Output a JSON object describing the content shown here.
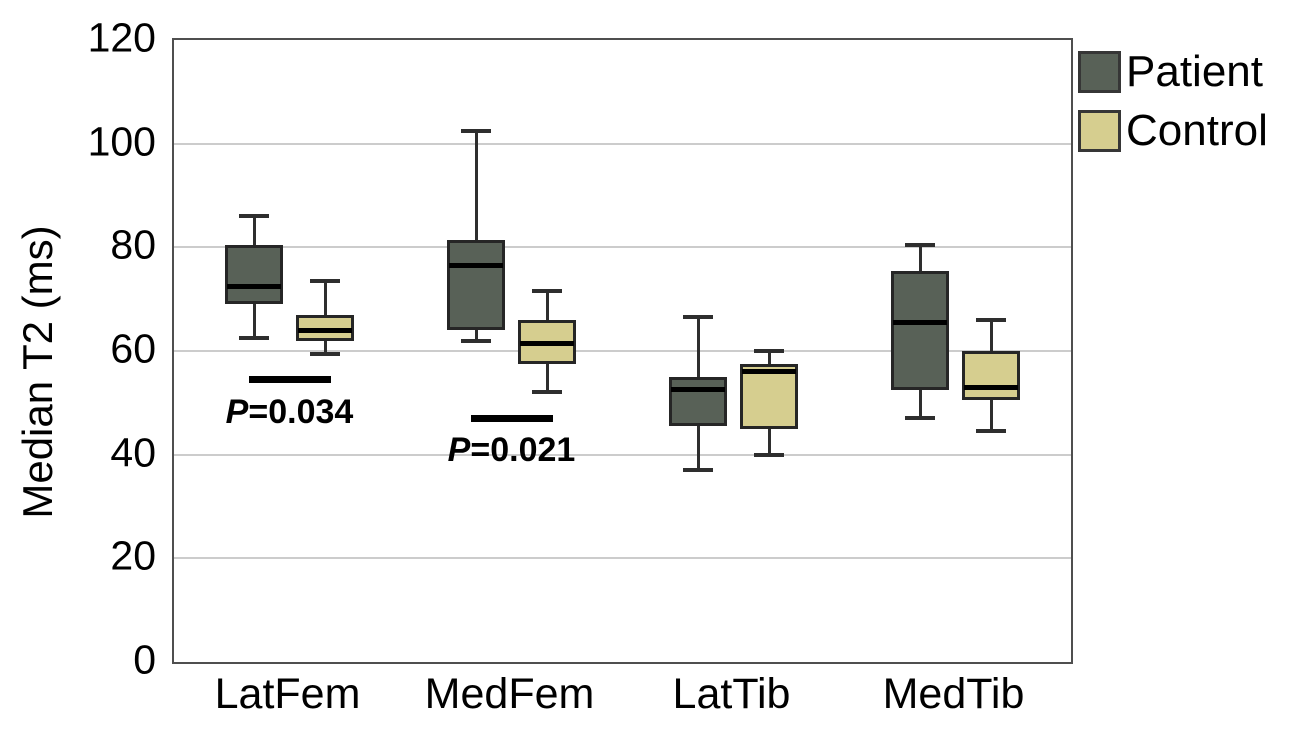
{
  "chart_data": {
    "type": "boxplot",
    "title": "",
    "ylabel": "Median T2 (ms)",
    "xlabel": "",
    "ylim": [
      0,
      120
    ],
    "yticks": [
      0,
      20,
      40,
      60,
      80,
      100,
      120
    ],
    "grid": "horizontal",
    "legend_position": "outside-top-right",
    "categories": [
      "LatFem",
      "MedFem",
      "LatTib",
      "MedTib"
    ],
    "series": [
      {
        "name": "Patient",
        "color": "#586157",
        "boxes": [
          {
            "min": 62.5,
            "q1": 69,
            "median": 72.5,
            "q3": 80.5,
            "max": 86
          },
          {
            "min": 62,
            "q1": 64,
            "median": 76.5,
            "q3": 81.5,
            "max": 102.5
          },
          {
            "min": 37,
            "q1": 45.5,
            "median": 52.5,
            "q3": 55,
            "max": 66.5
          },
          {
            "min": 47,
            "q1": 52.5,
            "median": 65.5,
            "q3": 75.5,
            "max": 80.5
          }
        ]
      },
      {
        "name": "Control",
        "color": "#d6ce8f",
        "boxes": [
          {
            "min": 59.5,
            "q1": 62,
            "median": 64,
            "q3": 67,
            "max": 73.5
          },
          {
            "min": 52,
            "q1": 57.5,
            "median": 61.5,
            "q3": 66,
            "max": 71.5
          },
          {
            "min": 40,
            "q1": 45,
            "median": 56,
            "q3": 57.5,
            "max": 60
          },
          {
            "min": 44.5,
            "q1": 50.5,
            "median": 53,
            "q3": 60,
            "max": 66
          }
        ]
      }
    ],
    "annotations": [
      {
        "category": "LatFem",
        "label": "P=0.034",
        "bar_value": 54.5
      },
      {
        "category": "MedFem",
        "label": "P=0.021",
        "bar_value": 47
      }
    ],
    "style": {
      "patient_fill": "#586157",
      "control_fill": "#d6ce8f",
      "box_border": "#262626",
      "whisker_color": "#2e2e2e",
      "median_color": "#000000",
      "grid_color": "#cccccc",
      "frame_color": "#4f4f4f",
      "background": "#ffffff",
      "significance_color": "#000000"
    }
  }
}
